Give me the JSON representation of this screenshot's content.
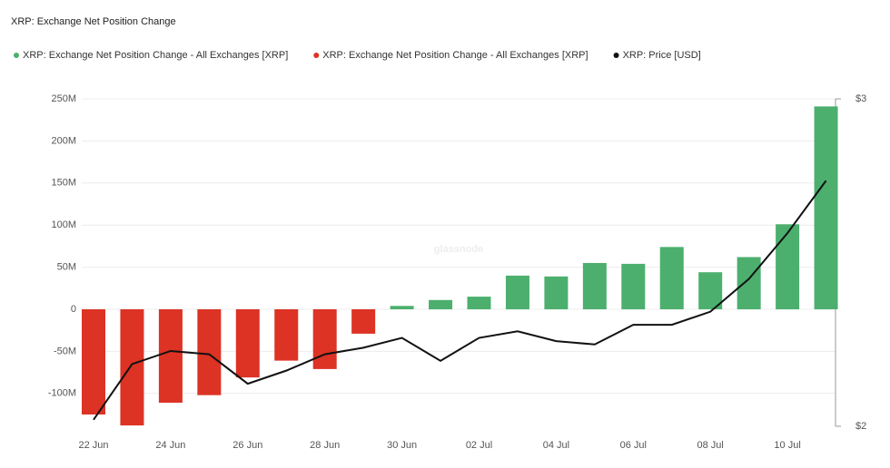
{
  "chart_data": {
    "type": "bar-line",
    "title": "XRP: Exchange Net Position Change",
    "watermark": "glassnode",
    "categories": [
      "22 Jun",
      null,
      "24 Jun",
      null,
      "26 Jun",
      null,
      "28 Jun",
      null,
      "30 Jun",
      null,
      "02 Jul",
      null,
      "04 Jul",
      null,
      "06 Jul",
      null,
      "08 Jul",
      null,
      "10 Jul",
      null
    ],
    "series": [
      {
        "name": "XRP: Exchange Net Position Change - All Exchanges [XRP]",
        "color": "#4caf6e",
        "type": "bar",
        "values": [
          null,
          null,
          null,
          null,
          null,
          null,
          null,
          null,
          4,
          11,
          15,
          40,
          39,
          55,
          54,
          74,
          44,
          62,
          101,
          241
        ]
      },
      {
        "name": "XRP: Exchange Net Position Change - All Exchanges [XRP]",
        "color": "#dc3325",
        "type": "bar",
        "values": [
          -125,
          -138,
          -111,
          -102,
          -81,
          -61,
          -71,
          -29,
          null,
          null,
          null,
          null,
          null,
          null,
          null,
          null,
          null,
          null,
          null,
          null
        ]
      },
      {
        "name": "XRP: Price [USD]",
        "color": "#111111",
        "type": "line",
        "axis": "y2",
        "values": [
          2.02,
          2.19,
          2.23,
          2.22,
          2.13,
          2.17,
          2.22,
          2.24,
          2.27,
          2.2,
          2.27,
          2.29,
          2.26,
          2.25,
          2.31,
          2.31,
          2.35,
          2.45,
          2.59,
          2.75
        ]
      }
    ],
    "ylim": [
      -139,
      250
    ],
    "yticks": [
      {
        "value": -100,
        "label": "-100M"
      },
      {
        "value": -50,
        "label": "-50M"
      },
      0,
      {
        "value": 50,
        "label": "50M"
      },
      {
        "value": 100,
        "label": "100M"
      },
      {
        "value": 150,
        "label": "150M"
      },
      {
        "value": 200,
        "label": "200M"
      },
      {
        "value": 250,
        "label": "250M"
      }
    ],
    "y2lim": [
      2,
      3
    ],
    "y2ticks": [
      {
        "value": 2,
        "label": "$2"
      },
      {
        "value": 3,
        "label": "$3"
      }
    ],
    "grid": true
  }
}
